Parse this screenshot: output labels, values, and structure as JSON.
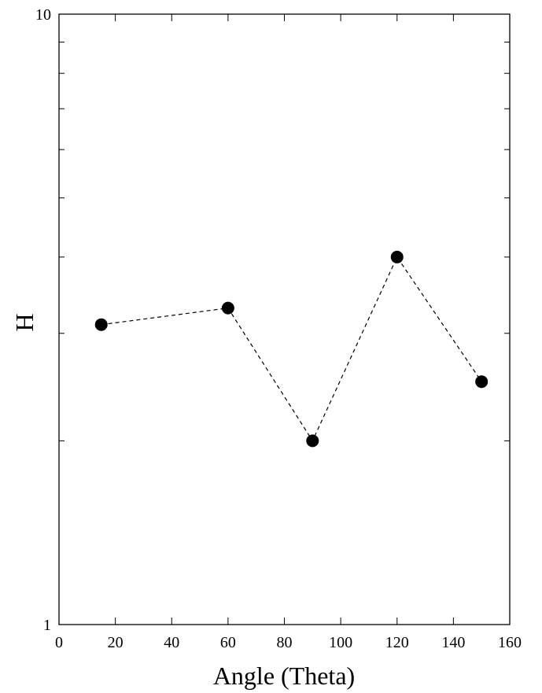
{
  "chart_data": {
    "type": "line",
    "title": "",
    "xlabel": "Angle (Theta)",
    "ylabel": "H",
    "x": [
      15,
      60,
      90,
      120,
      150
    ],
    "series": [
      {
        "values": [
          3.1,
          3.3,
          2.0,
          4.0,
          2.5
        ]
      }
    ],
    "xlim": [
      0,
      160
    ],
    "ylim": [
      1,
      10
    ],
    "yscale": "log",
    "xticks": [
      "0",
      "20",
      "40",
      "60",
      "80",
      "100",
      "120",
      "140",
      "160"
    ],
    "yticks": [
      "1",
      "10"
    ],
    "line_style": "dashed",
    "marker": "filled-circle",
    "grid": false,
    "colors": {
      "line": "#000000",
      "marker": "#000000",
      "axes": "#000000"
    }
  }
}
